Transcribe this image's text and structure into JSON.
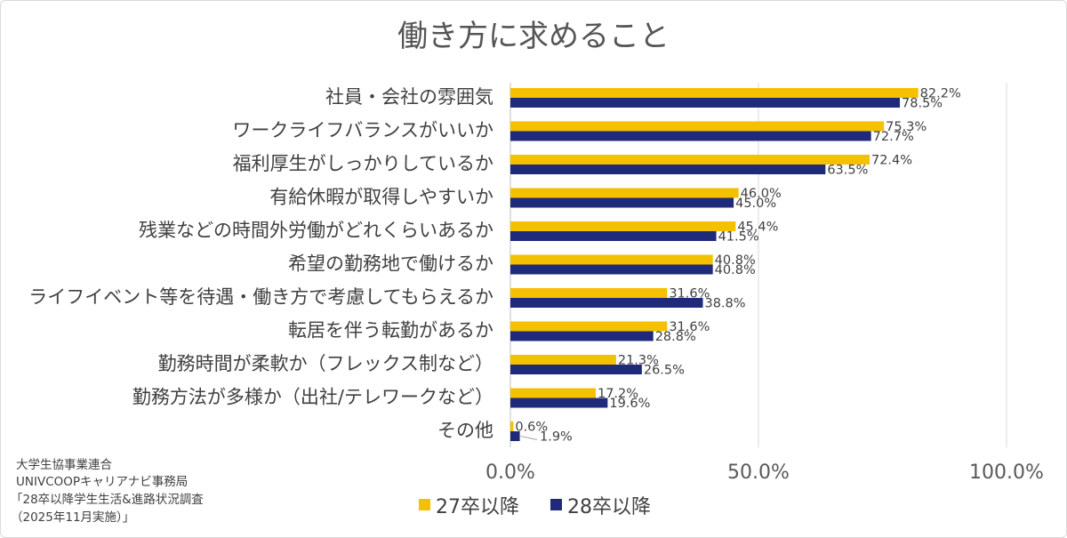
{
  "chart_data": {
    "type": "bar",
    "orientation": "horizontal",
    "title": "働き方に求めること",
    "categories": [
      "社員・会社の雰囲気",
      "ワークライフバランスがいいか",
      "福利厚生がしっかりしているか",
      "有給休暇が取得しやすいか",
      "残業などの時間外労働がどれくらいあるか",
      "希望の勤務地で働けるか",
      "ライフイベント等を待遇・働き方で考慮してもらえるか",
      "転居を伴う転勤があるか",
      "勤務時間が柔軟か（フレックス制など）",
      "勤務方法が多様か（出社/テレワークなど）",
      "その他"
    ],
    "series": [
      {
        "name": "27卒以降",
        "color": "#f5c000",
        "values": [
          82.2,
          75.3,
          72.4,
          46.0,
          45.4,
          40.8,
          31.6,
          31.6,
          21.3,
          17.2,
          0.6
        ],
        "labels": [
          "82.2%",
          "75.3%",
          "72.4%",
          "46.0%",
          "45.4%",
          "40.8%",
          "31.6%",
          "31.6%",
          "21.3%",
          "17.2%",
          "0.6%"
        ]
      },
      {
        "name": "28卒以降",
        "color": "#1f2a7a",
        "values": [
          78.5,
          72.7,
          63.5,
          45.0,
          41.5,
          40.8,
          38.8,
          28.8,
          26.5,
          19.6,
          1.9
        ],
        "labels": [
          "78.5%",
          "72.7%",
          "63.5%",
          "45.0%",
          "41.5%",
          "40.8%",
          "38.8%",
          "28.8%",
          "26.5%",
          "19.6%",
          "1.9%"
        ]
      }
    ],
    "xlim": [
      0,
      100
    ],
    "xticks": [
      0,
      50,
      100
    ],
    "xtick_labels": [
      "0.0%",
      "50.0%",
      "100.0%"
    ],
    "grid": true,
    "legend_position": "bottom"
  },
  "source_note": [
    "大学生協事業連合",
    "UNIVCOOPキャリアナビ事務局",
    "「28卒以降学生生活&進路状況調査",
    "（2025年11月実施）」"
  ]
}
